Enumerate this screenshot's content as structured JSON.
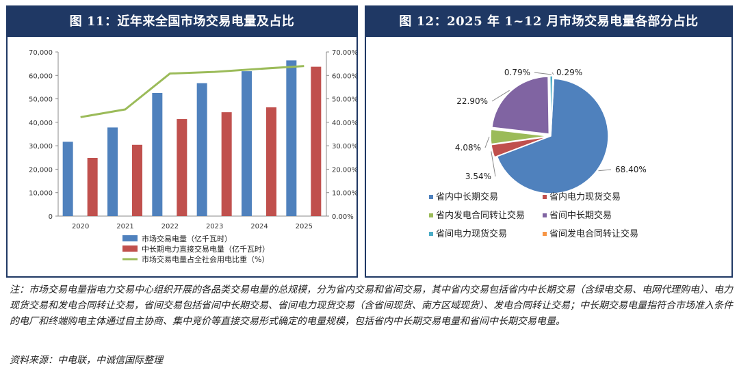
{
  "left_panel": {
    "title": "图 11：近年来全国市场交易电量及占比"
  },
  "right_panel": {
    "title": "图 12：2025 年 1~12 月市场交易电量各部分占比"
  },
  "note": "注：市场交易电量指电力交易中心组织开展的各品类交易电量的总规模，分为省内交易和省间交易，其中省内交易包括省内中长期交易（含绿电交易、电网代理购电）、电力现货交易和发电合同转让交易，省间交易包括省间中长期交易、省间电力现货交易（含省间现货、南方区域现货）、发电合同转让交易；中长期交易电量指符合市场准入条件的电厂和终端购电主体通过自主协商、集中竞价等直接交易形式确定的电量规模，包括省内中长期交易电量和省间中长期交易电量。",
  "source": "资料来源：中电联，中诚信国际整理",
  "chart_data": [
    {
      "type": "bar",
      "categories": [
        "2020",
        "2021",
        "2022",
        "2023",
        "2024",
        "2025"
      ],
      "series": [
        {
          "name": "市场交易电量（亿千瓦时）",
          "kind": "bar",
          "axis": "left",
          "color": "#4f81bd",
          "values": [
            31700,
            37800,
            52500,
            56700,
            61800,
            66400
          ]
        },
        {
          "name": "中长期电力直接交易电量（亿千瓦时）",
          "kind": "bar",
          "axis": "left",
          "color": "#c0504d",
          "values": [
            24800,
            30400,
            41400,
            44300,
            46400,
            63700
          ]
        },
        {
          "name": "市场交易电量占全社会用电比重（%）",
          "kind": "line",
          "axis": "right",
          "color": "#9bbb59",
          "values": [
            0.422,
            0.455,
            0.608,
            0.615,
            0.628,
            0.64
          ]
        }
      ],
      "left_axis": {
        "min": 0,
        "max": 70000,
        "ticks": [
          "0",
          "10,000",
          "20,000",
          "30,000",
          "40,000",
          "50,000",
          "60,000",
          "70,000"
        ]
      },
      "right_axis": {
        "min": 0,
        "max": 0.7,
        "ticks": [
          "0.00%",
          "10.00%",
          "20.00%",
          "30.00%",
          "40.00%",
          "50.00%",
          "60.00%",
          "70.00%"
        ]
      },
      "legend_position": "bottom"
    },
    {
      "type": "pie",
      "slices": [
        {
          "label": "省内中长期交易",
          "value": 68.4,
          "display": "68.40%",
          "color": "#4f81bd"
        },
        {
          "label": "省内电力现货交易",
          "value": 3.54,
          "display": "3.54%",
          "color": "#c0504d"
        },
        {
          "label": "省内发电合同转让交易",
          "value": 4.08,
          "display": "4.08%",
          "color": "#9bbb59"
        },
        {
          "label": "省间中长期交易",
          "value": 22.9,
          "display": "22.90%",
          "color": "#8064a2"
        },
        {
          "label": "省间电力现货交易",
          "value": 0.79,
          "display": "0.79%",
          "color": "#4bacc6"
        },
        {
          "label": "省间发电合同转让交易",
          "value": 0.29,
          "display": "0.29%",
          "color": "#f79646"
        }
      ],
      "legend_position": "bottom"
    }
  ]
}
